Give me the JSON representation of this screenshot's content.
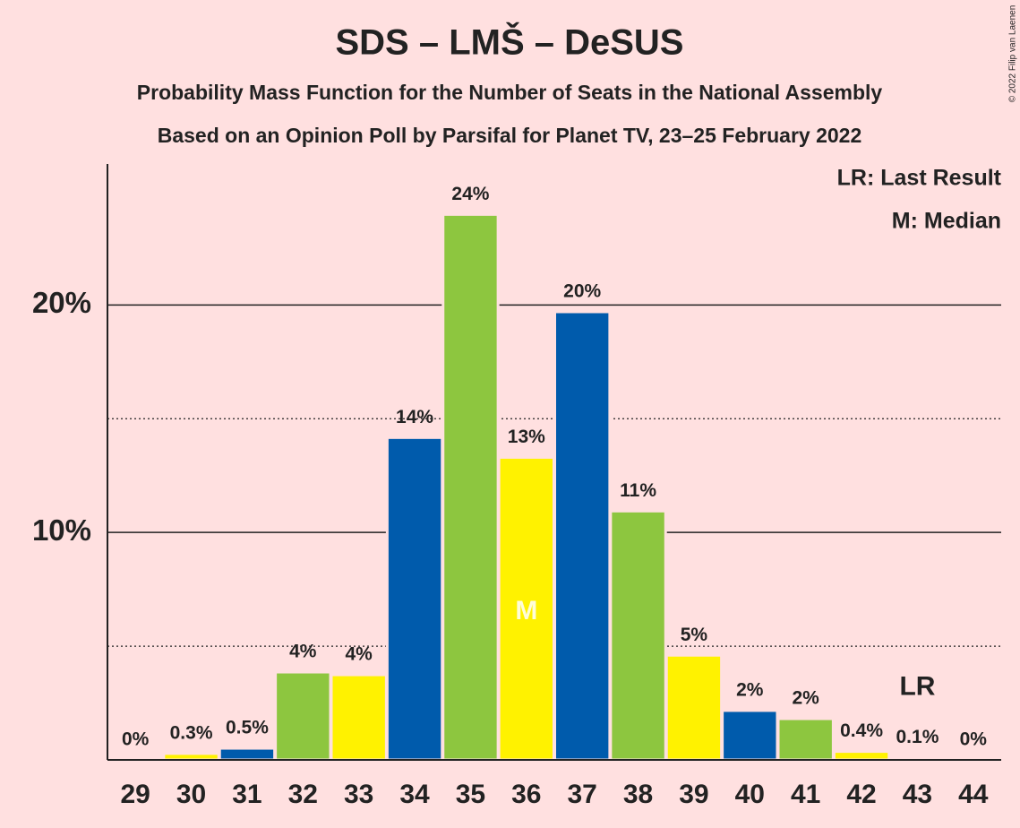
{
  "chart_data": {
    "type": "bar",
    "title": "SDS – LMŠ – DeSUS",
    "subtitle": "Probability Mass Function for the Number of Seats in the National Assembly",
    "subtitle2": "Based on an Opinion Poll by Parsifal for Planet TV, 23–25 February 2022",
    "copyright": "© 2022 Filip van Laenen",
    "categories": [
      "29",
      "30",
      "31",
      "32",
      "33",
      "34",
      "35",
      "36",
      "37",
      "38",
      "39",
      "40",
      "41",
      "42",
      "43",
      "44"
    ],
    "values": [
      0,
      0.28,
      0.51,
      3.86,
      3.74,
      14.17,
      23.98,
      13.3,
      19.7,
      10.94,
      4.6,
      2.17,
      1.81,
      0.37,
      0.1,
      0
    ],
    "value_labels": [
      "0%",
      "0.3%",
      "0.5%",
      "4%",
      "4%",
      "14%",
      "24%",
      "13%",
      "20%",
      "11%",
      "5%",
      "2%",
      "2%",
      "0.4%",
      "0.1%",
      "0%"
    ],
    "colors": [
      "#8dc63f",
      "#fff200",
      "#005bac",
      "#8dc63f",
      "#fff200",
      "#005bac",
      "#8dc63f",
      "#fff200",
      "#005bac",
      "#8dc63f",
      "#fff200",
      "#005bac",
      "#8dc63f",
      "#fff200",
      "#005bac",
      "#8dc63f"
    ],
    "ylim": [
      0,
      26.2
    ],
    "yticks": [
      {
        "value": 10,
        "label": "10%"
      },
      {
        "value": 20,
        "label": "20%"
      }
    ],
    "minor_gridlines": [
      5,
      15
    ],
    "grid": true,
    "median_category": "36",
    "median_marker": "M",
    "last_result_category": "43",
    "last_result_marker": "LR",
    "legend": [
      "LR: Last Result",
      "M: Median"
    ],
    "legend_position": "upper right"
  }
}
